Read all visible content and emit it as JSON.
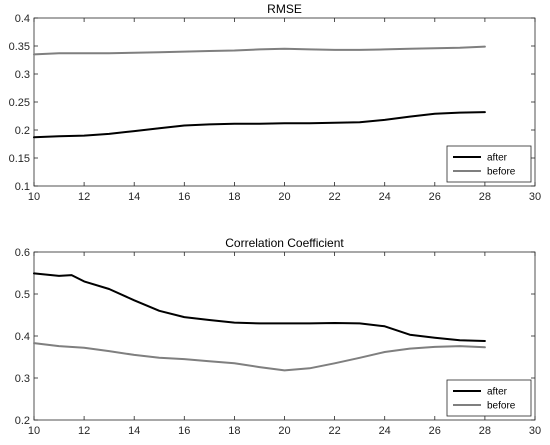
{
  "chart_data": [
    {
      "type": "line",
      "title": "RMSE",
      "xlabel": "",
      "ylabel": "",
      "xlim": [
        10,
        30
      ],
      "ylim": [
        0.1,
        0.4
      ],
      "xticks": [
        "10",
        "12",
        "14",
        "16",
        "18",
        "20",
        "22",
        "24",
        "26",
        "28",
        "30"
      ],
      "yticks": [
        "0.1",
        "0.15",
        "0.2",
        "0.25",
        "0.3",
        "0.35",
        "0.4"
      ],
      "legend_position": "bottom-right",
      "grid": false,
      "series": [
        {
          "name": "after",
          "color": "#000000",
          "x": [
            10,
            11,
            12,
            13,
            14,
            15,
            16,
            17,
            18,
            19,
            20,
            21,
            22,
            23,
            24,
            25,
            26,
            27,
            28
          ],
          "y": [
            0.187,
            0.189,
            0.19,
            0.193,
            0.198,
            0.203,
            0.208,
            0.21,
            0.211,
            0.211,
            0.212,
            0.212,
            0.213,
            0.214,
            0.218,
            0.224,
            0.229,
            0.231,
            0.232
          ]
        },
        {
          "name": "before",
          "color": "#7f7f7f",
          "x": [
            10,
            11,
            12,
            13,
            14,
            15,
            16,
            17,
            18,
            19,
            20,
            21,
            22,
            23,
            24,
            25,
            26,
            27,
            28
          ],
          "y": [
            0.335,
            0.337,
            0.337,
            0.337,
            0.338,
            0.339,
            0.34,
            0.341,
            0.342,
            0.344,
            0.345,
            0.344,
            0.343,
            0.343,
            0.344,
            0.345,
            0.346,
            0.347,
            0.349
          ]
        }
      ]
    },
    {
      "type": "line",
      "title": "Correlation Coefficient",
      "xlabel": "",
      "ylabel": "",
      "xlim": [
        10,
        30
      ],
      "ylim": [
        0.2,
        0.6
      ],
      "xticks": [
        "10",
        "12",
        "14",
        "16",
        "18",
        "20",
        "22",
        "24",
        "26",
        "28",
        "30"
      ],
      "yticks": [
        "0.2",
        "0.3",
        "0.4",
        "0.5",
        "0.6"
      ],
      "legend_position": "bottom-right",
      "grid": false,
      "series": [
        {
          "name": "after",
          "color": "#000000",
          "x": [
            10,
            11,
            11.5,
            12,
            13,
            14,
            15,
            16,
            17,
            18,
            19,
            20,
            21,
            22,
            23,
            24,
            25,
            26,
            27,
            28
          ],
          "y": [
            0.549,
            0.543,
            0.545,
            0.53,
            0.512,
            0.485,
            0.46,
            0.445,
            0.438,
            0.432,
            0.43,
            0.43,
            0.43,
            0.431,
            0.43,
            0.423,
            0.403,
            0.396,
            0.39,
            0.388
          ]
        },
        {
          "name": "before",
          "color": "#7f7f7f",
          "x": [
            10,
            11,
            12,
            13,
            14,
            15,
            16,
            17,
            18,
            19,
            20,
            21,
            22,
            23,
            24,
            25,
            26,
            27,
            28
          ],
          "y": [
            0.383,
            0.376,
            0.372,
            0.364,
            0.355,
            0.348,
            0.345,
            0.34,
            0.335,
            0.326,
            0.318,
            0.323,
            0.335,
            0.348,
            0.362,
            0.37,
            0.374,
            0.376,
            0.373
          ]
        }
      ]
    }
  ]
}
